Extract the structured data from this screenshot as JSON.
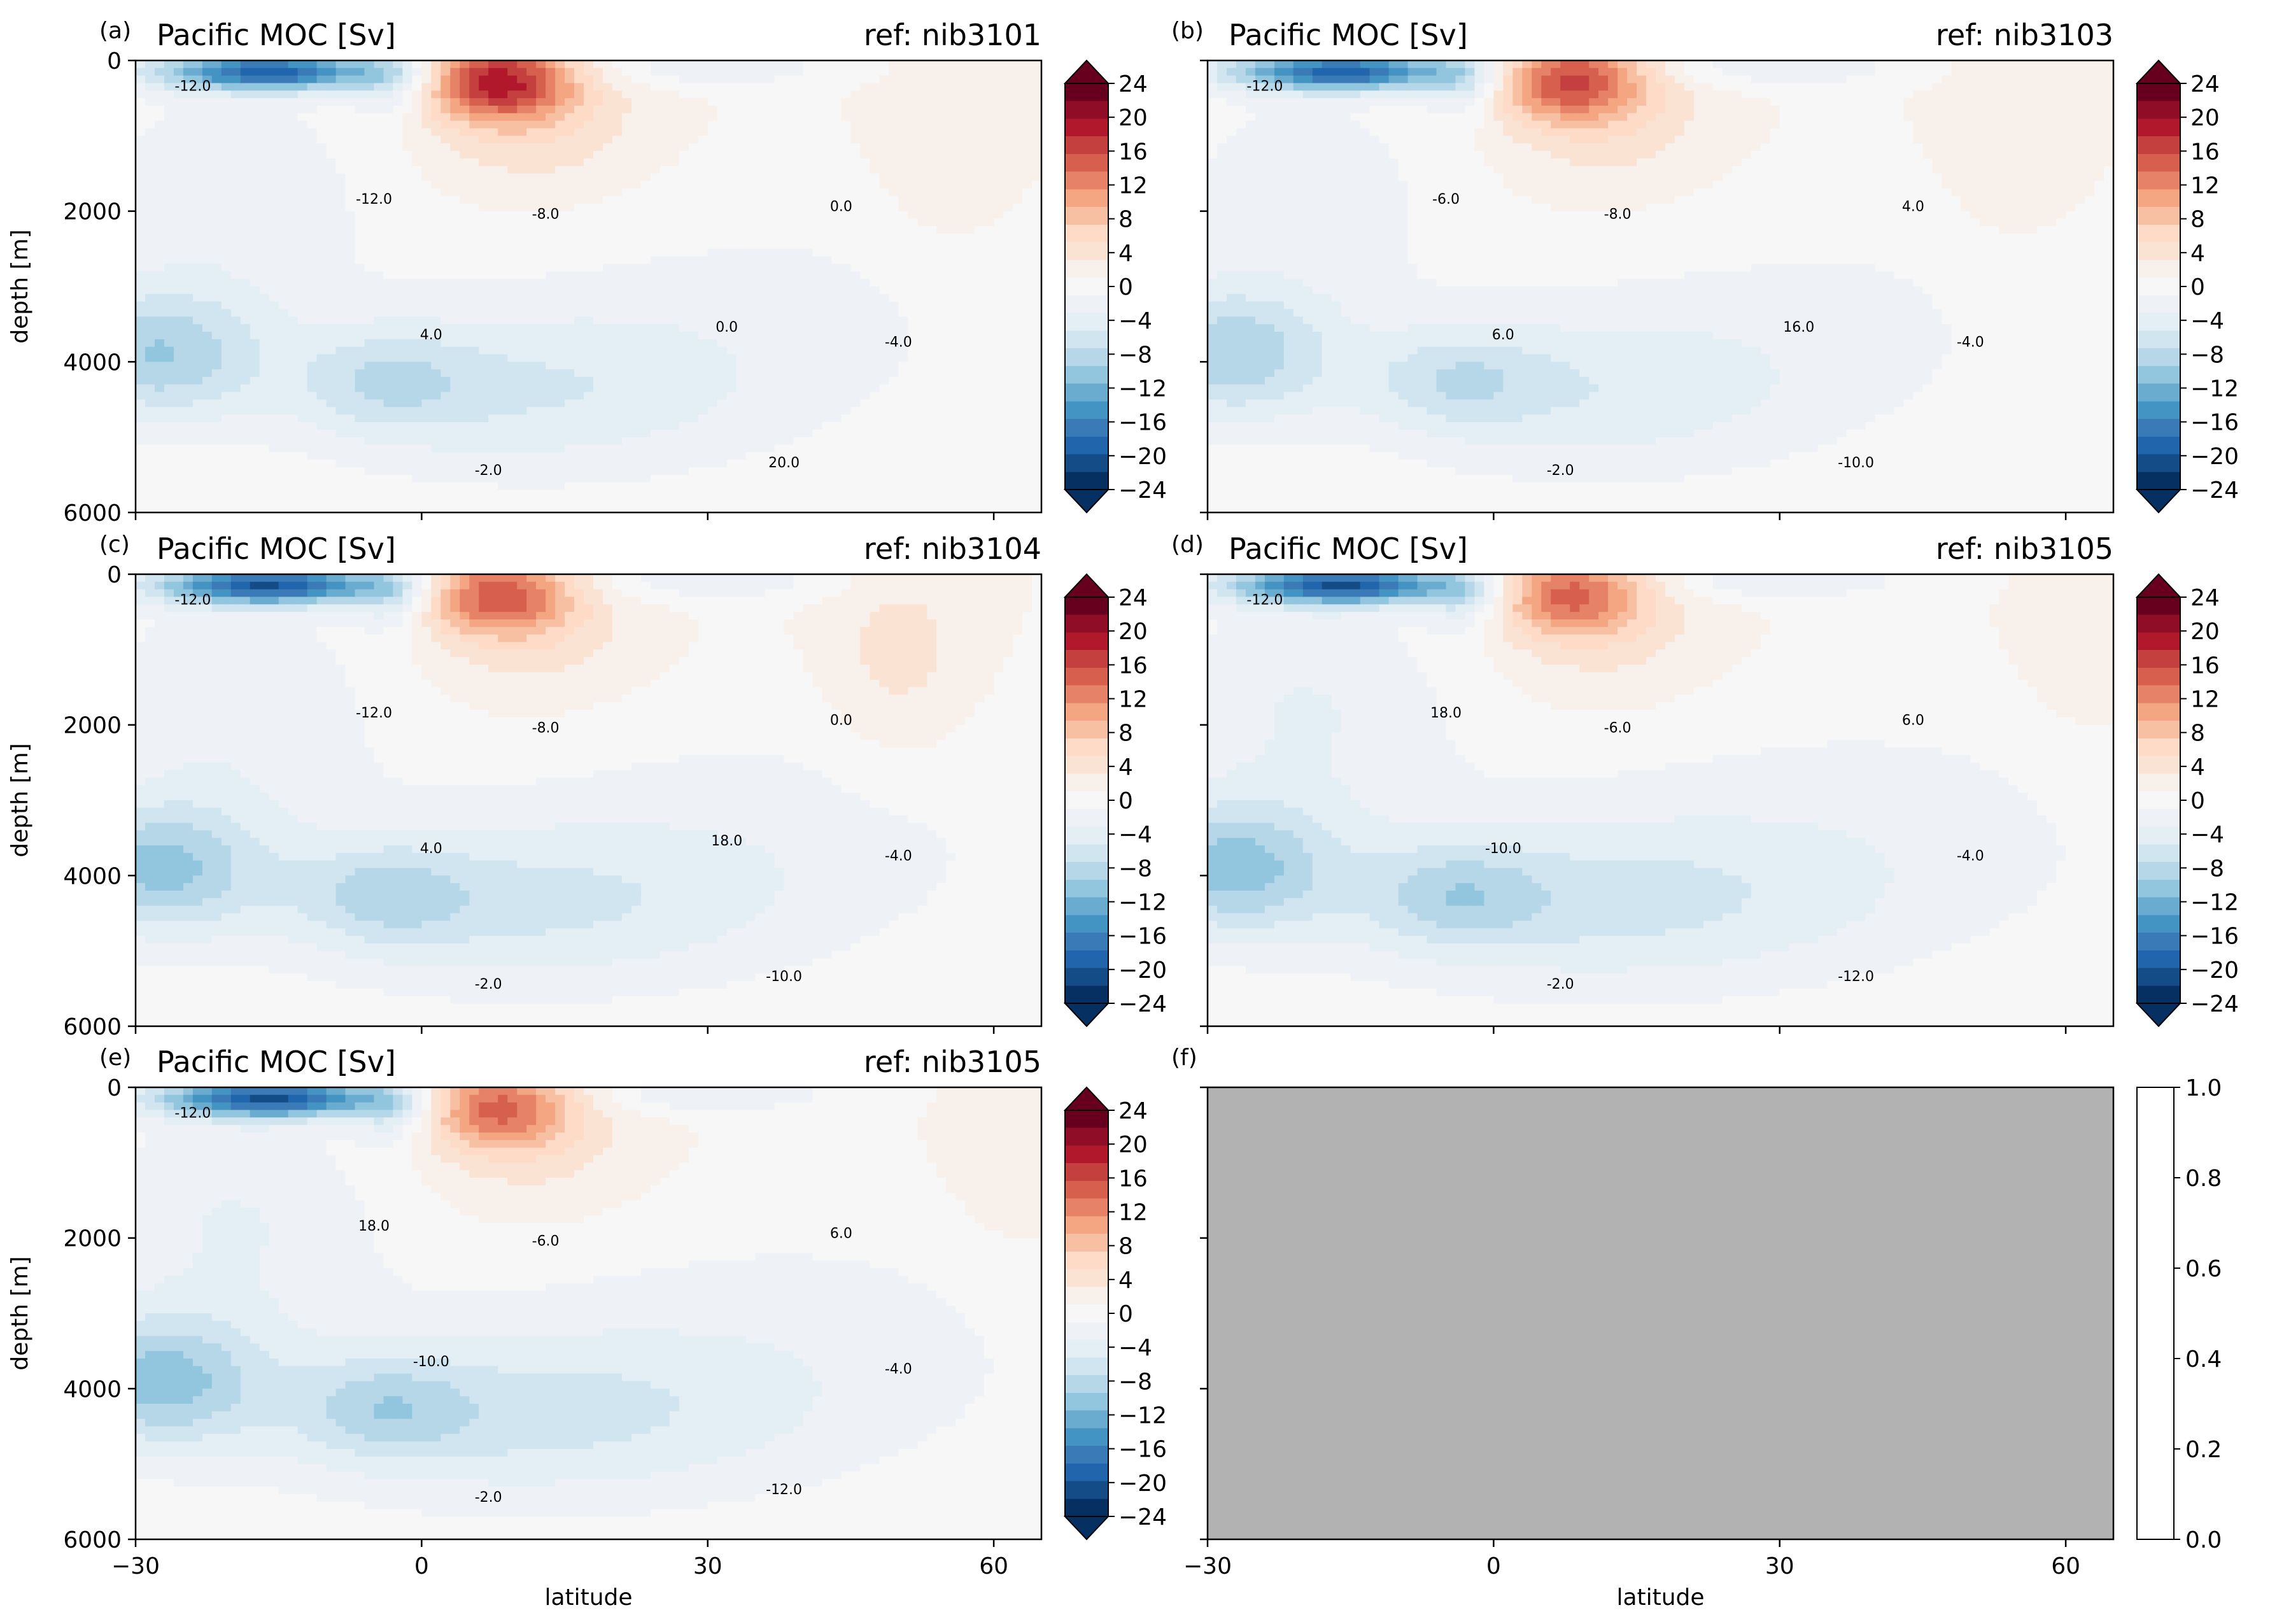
{
  "figure": {
    "x_axis": {
      "label": "latitude",
      "ticks": [
        -30,
        0,
        30,
        60
      ],
      "range": [
        -30,
        65
      ]
    },
    "y_axis": {
      "label": "depth [m]",
      "ticks": [
        0,
        2000,
        4000,
        6000
      ],
      "range": [
        0,
        6000
      ],
      "inverted": true
    }
  },
  "colorbar": {
    "levels": [
      -24,
      -22,
      -20,
      -18,
      -16,
      -14,
      -12,
      -10,
      -8,
      -6,
      -4,
      -2,
      0,
      2,
      4,
      6,
      8,
      10,
      12,
      14,
      16,
      18,
      20,
      22,
      24
    ],
    "tick_values": [
      24,
      20,
      16,
      12,
      8,
      4,
      0,
      -4,
      -8,
      -12,
      -16,
      -20,
      -24
    ],
    "extend": "both",
    "colors": [
      "#053061",
      "#134c87",
      "#2166ac",
      "#3a7bb7",
      "#4393c3",
      "#6aabd0",
      "#92c5de",
      "#b6d7e8",
      "#d1e5f0",
      "#e3eef5",
      "#eef2f6",
      "#f7f7f7",
      "#f8f0eb",
      "#fbe3d4",
      "#fddbc7",
      "#f8c0a2",
      "#f4a582",
      "#e58267",
      "#d6604d",
      "#c3403f",
      "#b2182b",
      "#8f0d26",
      "#67001f"
    ]
  },
  "empty_colorbar": {
    "ticks": [
      "1.0",
      "0.8",
      "0.6",
      "0.4",
      "0.2",
      "0.0"
    ]
  },
  "panels": [
    {
      "letter": "(a)",
      "title": "Pacific MOC [Sv]",
      "ref": "ref: nib3101",
      "row": 0,
      "col": 0
    },
    {
      "letter": "(b)",
      "title": "Pacific MOC [Sv]",
      "ref": "ref: nib3103",
      "row": 0,
      "col": 1
    },
    {
      "letter": "(c)",
      "title": "Pacific MOC [Sv]",
      "ref": "ref: nib3104",
      "row": 1,
      "col": 0
    },
    {
      "letter": "(d)",
      "title": "Pacific MOC [Sv]",
      "ref": "ref: nib3105",
      "row": 1,
      "col": 1
    },
    {
      "letter": "(e)",
      "title": "Pacific MOC [Sv]",
      "ref": "ref: nib3105",
      "row": 2,
      "col": 0
    },
    {
      "letter": "(f)",
      "title": "",
      "ref": "",
      "row": 2,
      "col": 1,
      "empty": true
    }
  ],
  "chart_data": [
    {
      "type": "heatmap",
      "panel": "(a)",
      "title": "Pacific MOC [Sv]",
      "ref": "ref: nib3101",
      "xlabel": "",
      "ylabel": "depth [m]",
      "xlim": [
        -30,
        65
      ],
      "ylim": [
        6000,
        0
      ],
      "contour_labels": [
        "-12.0",
        "-8.0",
        "-4.0",
        "-2.0",
        "0.0",
        "4.0",
        "20.0",
        "-12.0",
        "0.0"
      ],
      "min_approx": -13,
      "max_approx": 22
    },
    {
      "type": "heatmap",
      "panel": "(b)",
      "title": "Pacific MOC [Sv]",
      "ref": "ref: nib3103",
      "xlabel": "",
      "ylabel": "",
      "xlim": [
        -30,
        65
      ],
      "ylim": [
        6000,
        0
      ],
      "contour_labels": [
        "-12.0",
        "-8.0",
        "-4.0",
        "-2.0",
        "4.0",
        "6.0",
        "-10.0",
        "-6.0",
        "16.0"
      ],
      "min_approx": -13,
      "max_approx": 18
    },
    {
      "type": "heatmap",
      "panel": "(c)",
      "title": "Pacific MOC [Sv]",
      "ref": "ref: nib3104",
      "xlabel": "",
      "ylabel": "depth [m]",
      "xlim": [
        -30,
        65
      ],
      "ylim": [
        6000,
        0
      ],
      "contour_labels": [
        "-12.0",
        "-8.0",
        "-4.0",
        "-2.0",
        "0.0",
        "4.0",
        "-10.0",
        "-12.0",
        "18.0"
      ],
      "min_approx": -13,
      "max_approx": 19
    },
    {
      "type": "heatmap",
      "panel": "(d)",
      "title": "Pacific MOC [Sv]",
      "ref": "ref: nib3105",
      "xlabel": "",
      "ylabel": "",
      "xlim": [
        -30,
        65
      ],
      "ylim": [
        6000,
        0
      ],
      "contour_labels": [
        "-12.0",
        "-6.0",
        "-4.0",
        "-2.0",
        "6.0",
        "-10.0",
        "-12.0",
        "18.0"
      ],
      "min_approx": -13,
      "max_approx": 19
    },
    {
      "type": "heatmap",
      "panel": "(e)",
      "title": "Pacific MOC [Sv]",
      "ref": "ref: nib3105",
      "xlabel": "latitude",
      "ylabel": "depth [m]",
      "xlim": [
        -30,
        65
      ],
      "ylim": [
        6000,
        0
      ],
      "contour_labels": [
        "-12.0",
        "-6.0",
        "-4.0",
        "-2.0",
        "6.0",
        "-10.0",
        "-12.0",
        "18.0"
      ],
      "min_approx": -13,
      "max_approx": 19
    },
    {
      "type": "heatmap",
      "panel": "(f)",
      "title": "",
      "xlabel": "latitude",
      "ylabel": "",
      "xlim": [
        -30,
        65
      ],
      "ylim": [
        6000,
        0
      ],
      "empty": true,
      "colorbar_range": [
        0,
        1
      ]
    }
  ]
}
